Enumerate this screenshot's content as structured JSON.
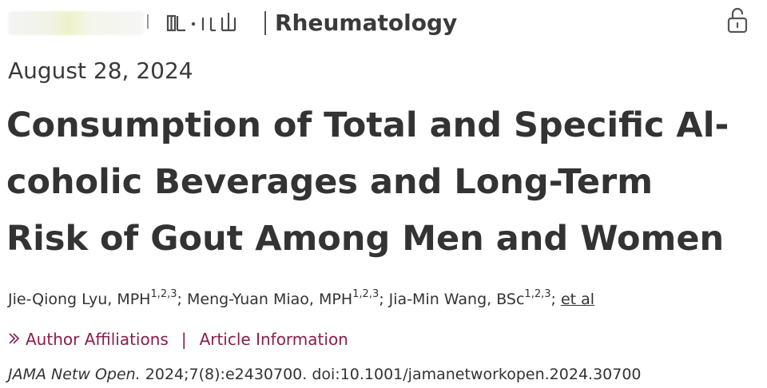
{
  "header": {
    "journal_logo_text": "ııı · ııııı",
    "section": "Rheumatology",
    "lock_icon": "unlock-icon"
  },
  "article": {
    "date": "August 28, 2024",
    "title_lines": [
      "Consumption of Total and Specific Al-",
      "coholic Beverages and Long-Term",
      "Risk of Gout Among Men and Women"
    ],
    "authors": [
      {
        "name": "Jie-Qiong Lyu, MPH",
        "affil": "1,2,3",
        "sep": "; "
      },
      {
        "name": "Meng-Yuan Miao, MPH",
        "affil": "1,2,3",
        "sep": "; "
      },
      {
        "name": "Jia-Min Wang, BSc",
        "affil": "1,2,3",
        "sep": "; "
      }
    ],
    "et_al": "et al",
    "links": {
      "affiliations": "Author Affiliations",
      "separator": "|",
      "information": "Article Information",
      "chevron_icon": "double-chevron-right-icon"
    },
    "citation": {
      "journal": "JAMA Netw Open.",
      "details": " 2024;7(8):e2430700. doi:10.1001/jamanetworkopen.2024.30700"
    }
  },
  "colors": {
    "text": "#333333",
    "link": "#8a1d4e"
  }
}
